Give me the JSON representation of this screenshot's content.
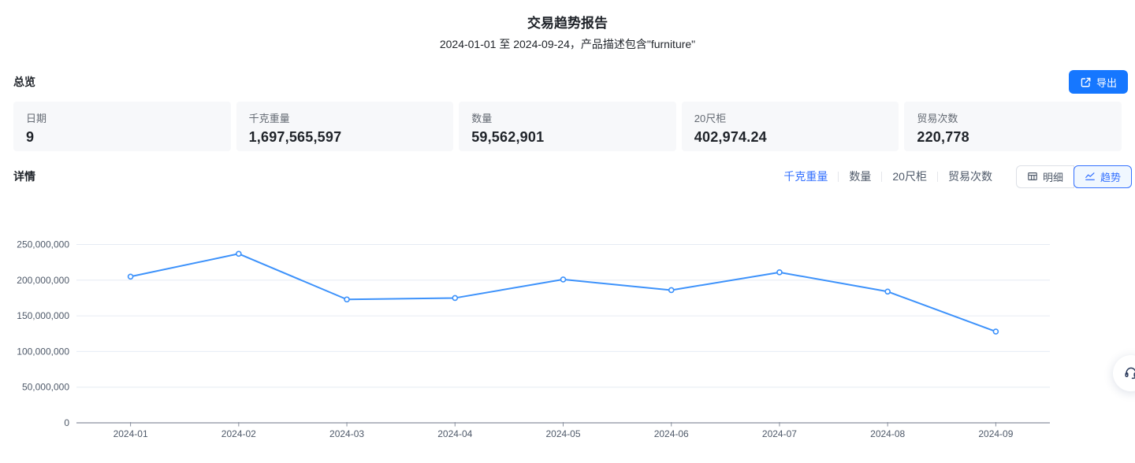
{
  "header": {
    "title": "交易趋势报告",
    "subtitle": "2024-01-01 至 2024-09-24，产品描述包含\"furniture\""
  },
  "overview": {
    "section_title": "总览",
    "export_label": "导出",
    "export_icon": "export-icon",
    "cards": [
      {
        "label": "日期",
        "value": "9"
      },
      {
        "label": "千克重量",
        "value": "1,697,565,597"
      },
      {
        "label": "数量",
        "value": "59,562,901"
      },
      {
        "label": "20尺柜",
        "value": "402,974.24"
      },
      {
        "label": "贸易次数",
        "value": "220,778"
      }
    ]
  },
  "details": {
    "section_title": "详情",
    "metric_tabs": [
      {
        "label": "千克重量",
        "active": true
      },
      {
        "label": "数量",
        "active": false
      },
      {
        "label": "20尺柜",
        "active": false
      },
      {
        "label": "贸易次数",
        "active": false
      }
    ],
    "view_toggle": [
      {
        "label": "明细",
        "icon": "table-icon",
        "active": false
      },
      {
        "label": "趋势",
        "icon": "line-chart-icon",
        "active": true
      }
    ]
  },
  "chart_data": {
    "type": "line",
    "title": "",
    "xlabel": "",
    "ylabel": "",
    "categories": [
      "2024-01",
      "2024-02",
      "2024-03",
      "2024-04",
      "2024-05",
      "2024-06",
      "2024-07",
      "2024-08",
      "2024-09"
    ],
    "series": [
      {
        "name": "千克重量",
        "values": [
          205000000,
          237000000,
          173000000,
          175000000,
          201000000,
          186000000,
          211000000,
          184000000,
          128000000
        ]
      }
    ],
    "ylim": [
      0,
      250000000
    ],
    "y_ticks": [
      0,
      50000000,
      100000000,
      150000000,
      200000000,
      250000000
    ],
    "grid": "horizontal",
    "legend": "none",
    "point_style": "hollow-circle"
  },
  "floating": {
    "support_icon": "headset-icon"
  },
  "colors": {
    "accent": "#1677ff",
    "tab_active": "#3370ff",
    "line": "#3d92fb",
    "card_bg": "#f7f8fa",
    "grid_line": "#e6ebf4",
    "axis_line": "#8a919f",
    "axis_text": "#4e5969",
    "text_dark": "#1f2329",
    "text_secondary": "#646a73",
    "toggle_active_bg": "#f0f7ff"
  }
}
